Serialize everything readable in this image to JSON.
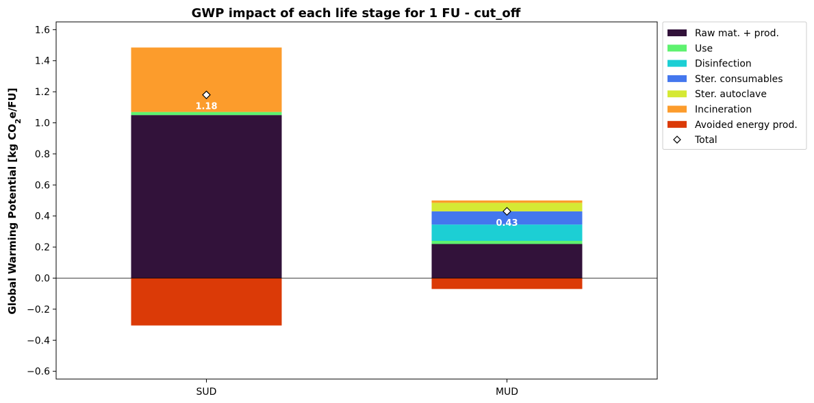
{
  "chart_data": {
    "type": "bar",
    "stacked": true,
    "title": "GWP impact of each life stage for 1 FU - cut_off",
    "ylabel": "Global Warming Potential [kg CO",
    "ylabel_sub": "2",
    "ylabel_end": "e/FU]",
    "xlabel": "",
    "ylim": [
      -0.65,
      1.65
    ],
    "yticks": [
      -0.6,
      -0.4,
      -0.2,
      0.0,
      0.2,
      0.4,
      0.6,
      0.8,
      1.0,
      1.2,
      1.4,
      1.6
    ],
    "ytick_labels": [
      "−0.6",
      "−0.4",
      "−0.2",
      "0.0",
      "0.2",
      "0.4",
      "0.6",
      "0.8",
      "1.0",
      "1.2",
      "1.4",
      "1.6"
    ],
    "categories": [
      "SUD",
      "MUD"
    ],
    "grid": false,
    "legend_position": "outside top-right",
    "series": [
      {
        "name": "Raw mat. + prod.",
        "color": "#32123a",
        "values": [
          1.05,
          0.22
        ]
      },
      {
        "name": "Use",
        "color": "#5ef26f",
        "values": [
          0.02,
          0.02
        ]
      },
      {
        "name": "Disinfection",
        "color": "#1ccfd4",
        "values": [
          0.0,
          0.105
        ]
      },
      {
        "name": "Ster. consumables",
        "color": "#4477ee",
        "values": [
          0.0,
          0.085
        ]
      },
      {
        "name": "Ster. autoclave",
        "color": "#d5e934",
        "values": [
          0.0,
          0.055
        ]
      },
      {
        "name": "Incineration",
        "color": "#fc9c2c",
        "values": [
          0.415,
          0.015
        ]
      },
      {
        "name": "Avoided energy prod.",
        "color": "#db3a07",
        "values": [
          -0.305,
          -0.07
        ]
      }
    ],
    "totals": {
      "name": "Total",
      "values": [
        1.18,
        0.43
      ],
      "labels": [
        "1.18",
        "0.43"
      ]
    }
  }
}
